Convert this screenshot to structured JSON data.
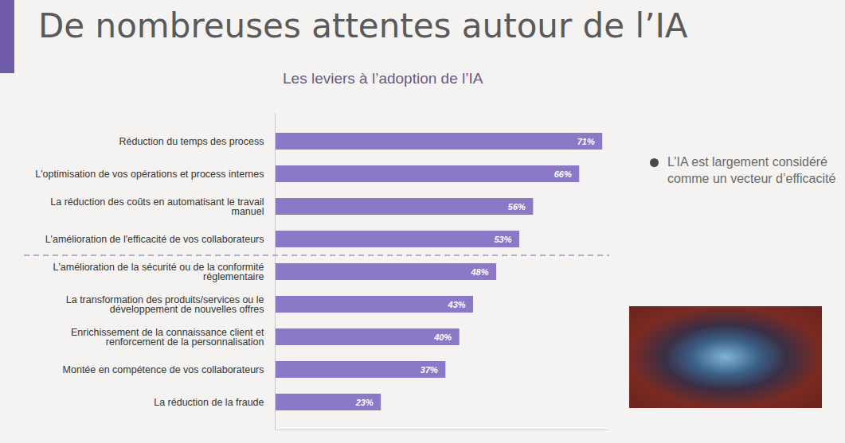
{
  "chart_data": {
    "type": "bar",
    "title": "De nombreuses attentes autour de l’IA",
    "subtitle": "Les leviers à l’adoption de l’IA",
    "annotation": "L’IA est largement considéré comme un vecteur d’efficacité",
    "orientation": "horizontal",
    "categories": [
      "Réduction du temps des process",
      "L'optimisation de vos opérations et process internes",
      "La réduction des coûts en automatisant le travail manuel",
      "L'amélioration de l'efficacité de vos collaborateurs",
      "L'amélioration de la sécurité ou de la conformité réglementaire",
      "La transformation des produits/services ou le développement de nouvelles offres",
      "Enrichissement de la connaissance client et renforcement de la personnalisation",
      "Montée en compétence de vos collaborateurs",
      "La réduction de la fraude"
    ],
    "values": [
      71,
      66,
      56,
      53,
      48,
      43,
      40,
      37,
      23
    ],
    "value_labels": [
      "71%",
      "66%",
      "56%",
      "53%",
      "48%",
      "43%",
      "40%",
      "37%",
      "23%"
    ],
    "color": "#8b78c6",
    "data_labels": true,
    "tick_labels": "y",
    "grid": false,
    "xlim": [
      0,
      72
    ],
    "xticks": []
  }
}
